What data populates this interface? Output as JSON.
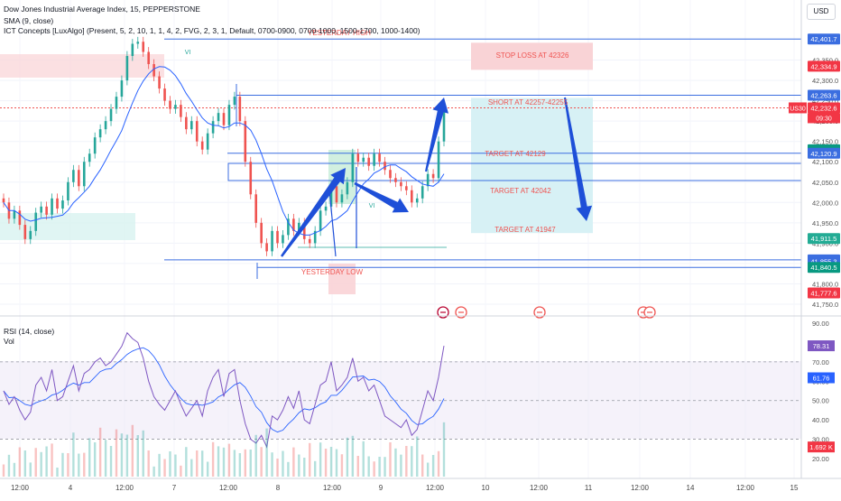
{
  "header": {
    "title": "Dow Jones Industrial Average Index, 15, PEPPERSTONE",
    "sma": "SMA (9, close)",
    "ict": "ICT Concepts [LuxAlgo] (Present, 5, 2, 10, 1, 1, 4, 2, FVG, 2, 3, 1, Default, 0700-0900, 0700-1000, 1500-1700, 1000-1400)",
    "currency": "USD"
  },
  "rsi_panel": {
    "title": "RSI (14, close)",
    "vol": "Vol"
  },
  "annotations": {
    "yesterday_high": "YESTERDAY HIGH",
    "yesterday_low": "YESTERDAY LOW",
    "stop_loss": "STOP LOSS AT 42326",
    "short": "SHORT AT 42257-42255",
    "target1": "TARGET AT 42129",
    "target2": "TARGET AT 42042",
    "target3": "TARGET AT 41947",
    "vi": "VI",
    "symbol_tag": "US30",
    "countdown": "09:30"
  },
  "colors": {
    "up": "#26a69a",
    "down": "#ef5350",
    "sma": "#2962ff",
    "arrow": "#1e4fd8",
    "level_line": "#3b6ee0",
    "rsi": "#7e57c2",
    "target_zone": "#d7f1f5",
    "stop_zone": "#f9d3d6"
  },
  "chart_data": {
    "type": "candlestick",
    "symbol": "US30",
    "price_axis": {
      "ticks": [
        41750,
        41800,
        41850,
        41900,
        41950,
        42000,
        42050,
        42100,
        42150,
        42200,
        42250,
        42300,
        42350
      ]
    },
    "time_axis": {
      "ticks": [
        "12:00",
        "4",
        "12:00",
        "7",
        "12:00",
        "8",
        "12:00",
        "9",
        "12:00",
        "10",
        "12:00",
        "11",
        "12:00",
        "14",
        "12:00",
        "15"
      ]
    },
    "price_labels": [
      {
        "value": "42,401.7",
        "style": "blue"
      },
      {
        "value": "42,334.9",
        "style": "red"
      },
      {
        "value": "42,263.6",
        "style": "blue"
      },
      {
        "value": "42,232.6",
        "style": "red"
      },
      {
        "value": "42,129.6",
        "style": "green"
      },
      {
        "value": "42,120.9",
        "style": "blue"
      },
      {
        "value": "41,911.5",
        "style": "teal"
      },
      {
        "value": "41,858.9",
        "style": "blue"
      },
      {
        "value": "41,855.3",
        "style": "blue"
      },
      {
        "value": "41,840.5",
        "style": "green"
      },
      {
        "value": "41,777.6",
        "style": "red"
      }
    ],
    "levels": [
      {
        "name": "yesterday_high",
        "value": 42401.7
      },
      {
        "name": "stop_loss",
        "value": 42326
      },
      {
        "name": "short_entry_high",
        "value": 42257
      },
      {
        "name": "short_entry_low",
        "value": 42255
      },
      {
        "name": "target_1",
        "value": 42129
      },
      {
        "name": "target_2",
        "value": 42042
      },
      {
        "name": "target_3",
        "value": 41947
      },
      {
        "name": "yesterday_low",
        "value": 41858.9
      }
    ],
    "last_price": 42232.6,
    "close_series": [
      42000,
      41960,
      41980,
      41945,
      41910,
      41930,
      41975,
      41990,
      41970,
      42010,
      41985,
      42005,
      42050,
      42080,
      42040,
      42100,
      42120,
      42160,
      42180,
      42200,
      42230,
      42260,
      42300,
      42360,
      42390,
      42395,
      42370,
      42340,
      42310,
      42280,
      42250,
      42230,
      42240,
      42210,
      42180,
      42200,
      42150,
      42130,
      42170,
      42200,
      42220,
      42190,
      42240,
      42260,
      42200,
      42100,
      42020,
      41950,
      41900,
      41880,
      41930,
      41900,
      41920,
      41960,
      41930,
      41950,
      41910,
      41900,
      41930,
      41980,
      41990,
      42040,
      42000,
      42020,
      42050,
      42120,
      42100,
      42110,
      42090,
      42120,
      42100,
      42080,
      42060,
      42050,
      42040,
      42030,
      42000,
      42010,
      42040,
      42070,
      42060,
      42150,
      42232.6
    ],
    "rsi": {
      "levels": [
        70,
        50,
        30
      ],
      "axis": [
        90,
        80,
        70,
        60,
        50,
        40,
        30,
        20
      ],
      "last_values": [
        "78.31",
        "61.76"
      ],
      "volume_last": "1.692 K",
      "series": [
        55,
        48,
        52,
        45,
        40,
        44,
        58,
        62,
        55,
        66,
        50,
        52,
        60,
        68,
        55,
        64,
        66,
        70,
        72,
        68,
        70,
        74,
        78,
        85,
        82,
        80,
        72,
        60,
        52,
        48,
        45,
        50,
        55,
        48,
        42,
        46,
        50,
        42,
        55,
        62,
        66,
        52,
        64,
        66,
        50,
        38,
        30,
        28,
        32,
        26,
        42,
        40,
        45,
        52,
        46,
        55,
        40,
        38,
        48,
        58,
        60,
        70,
        55,
        58,
        62,
        72,
        60,
        62,
        55,
        58,
        50,
        42,
        40,
        38,
        36,
        40,
        32,
        35,
        45,
        55,
        50,
        62,
        78.31
      ]
    }
  }
}
